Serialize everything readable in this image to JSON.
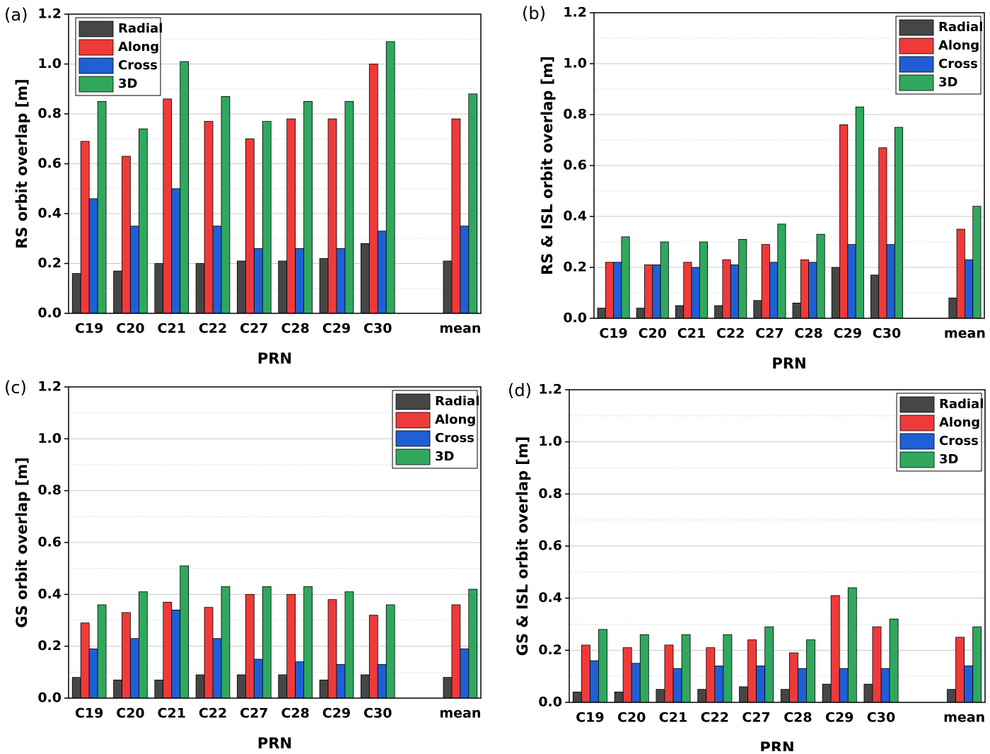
{
  "chart_data": [
    {
      "type": "bar",
      "label": "(a)",
      "xlabel": "PRN",
      "ylabel": "RS orbit overlap [m]",
      "categories": [
        "C19",
        "C20",
        "C21",
        "C22",
        "C27",
        "C28",
        "C29",
        "C30",
        null,
        "mean"
      ],
      "ylim": [
        0,
        1.2
      ],
      "yticks": [
        {
          "value": 0,
          "label": "0.0"
        },
        0.2,
        0.4,
        0.6,
        0.8,
        {
          "value": 1,
          "label": "1.0"
        },
        1.2
      ],
      "grid": true,
      "legend": "top-left",
      "series": [
        {
          "name": "Radial",
          "color": "#464646",
          "values": [
            0.16,
            0.17,
            0.2,
            0.2,
            0.21,
            0.21,
            0.22,
            0.28,
            null,
            0.21
          ]
        },
        {
          "name": "Along",
          "color": "#f03a3a",
          "values": [
            0.69,
            0.63,
            0.86,
            0.77,
            0.7,
            0.78,
            0.78,
            1.0,
            null,
            0.78
          ]
        },
        {
          "name": "Cross",
          "color": "#1f5fd6",
          "values": [
            0.46,
            0.35,
            0.5,
            0.35,
            0.26,
            0.26,
            0.26,
            0.33,
            null,
            0.35
          ]
        },
        {
          "name": "3D",
          "color": "#2fa85e",
          "values": [
            0.85,
            0.74,
            1.01,
            0.87,
            0.77,
            0.85,
            0.85,
            1.09,
            null,
            0.88
          ]
        }
      ]
    },
    {
      "type": "bar",
      "label": "(b)",
      "xlabel": "PRN",
      "ylabel": "RS & ISL orbit overlap [m]",
      "categories": [
        "C19",
        "C20",
        "C21",
        "C22",
        "C27",
        "C28",
        "C29",
        "C30",
        null,
        "mean"
      ],
      "ylim": [
        0,
        1.2
      ],
      "yticks": [
        {
          "value": 0,
          "label": "0.0"
        },
        0.2,
        0.4,
        0.6,
        0.8,
        {
          "value": 1,
          "label": "1.0"
        },
        1.2
      ],
      "grid": true,
      "legend": "top-right",
      "series": [
        {
          "name": "Radial",
          "color": "#464646",
          "values": [
            0.04,
            0.04,
            0.05,
            0.05,
            0.07,
            0.06,
            0.2,
            0.17,
            null,
            0.08
          ]
        },
        {
          "name": "Along",
          "color": "#f03a3a",
          "values": [
            0.22,
            0.21,
            0.22,
            0.23,
            0.29,
            0.23,
            0.76,
            0.67,
            null,
            0.35
          ]
        },
        {
          "name": "Cross",
          "color": "#1f5fd6",
          "values": [
            0.22,
            0.21,
            0.2,
            0.21,
            0.22,
            0.22,
            0.29,
            0.29,
            null,
            0.23
          ]
        },
        {
          "name": "3D",
          "color": "#2fa85e",
          "values": [
            0.32,
            0.3,
            0.3,
            0.31,
            0.37,
            0.33,
            0.83,
            0.75,
            null,
            0.44
          ]
        }
      ]
    },
    {
      "type": "bar",
      "label": "(c)",
      "xlabel": "PRN",
      "ylabel": "GS orbit overlap [m]",
      "categories": [
        "C19",
        "C20",
        "C21",
        "C22",
        "C27",
        "C28",
        "C29",
        "C30",
        null,
        "mean"
      ],
      "ylim": [
        0,
        1.2
      ],
      "yticks": [
        {
          "value": 0,
          "label": "0.0"
        },
        0.2,
        0.4,
        0.6,
        0.8,
        {
          "value": 1,
          "label": "1.0"
        },
        1.2
      ],
      "grid": true,
      "legend": "top-right",
      "series": [
        {
          "name": "Radial",
          "color": "#464646",
          "values": [
            0.08,
            0.07,
            0.07,
            0.09,
            0.09,
            0.09,
            0.07,
            0.09,
            null,
            0.08
          ]
        },
        {
          "name": "Along",
          "color": "#f03a3a",
          "values": [
            0.29,
            0.33,
            0.37,
            0.35,
            0.4,
            0.4,
            0.38,
            0.32,
            null,
            0.36
          ]
        },
        {
          "name": "Cross",
          "color": "#1f5fd6",
          "values": [
            0.19,
            0.23,
            0.34,
            0.23,
            0.15,
            0.14,
            0.13,
            0.13,
            null,
            0.19
          ]
        },
        {
          "name": "3D",
          "color": "#2fa85e",
          "values": [
            0.36,
            0.41,
            0.51,
            0.43,
            0.43,
            0.43,
            0.41,
            0.36,
            null,
            0.42
          ]
        }
      ]
    },
    {
      "type": "bar",
      "label": "(d)",
      "xlabel": "PRN",
      "ylabel": "GS & ISL orbit overlap [m]",
      "categories": [
        "C19",
        "C20",
        "C21",
        "C22",
        "C27",
        "C28",
        "C29",
        "C30",
        null,
        "mean"
      ],
      "ylim": [
        0,
        1.2
      ],
      "yticks": [
        {
          "value": 0,
          "label": "0.0"
        },
        0.2,
        0.4,
        0.6,
        0.8,
        {
          "value": 1,
          "label": "1.0"
        },
        1.2
      ],
      "grid": true,
      "legend": "top-right",
      "series": [
        {
          "name": "Radial",
          "color": "#464646",
          "values": [
            0.04,
            0.04,
            0.05,
            0.05,
            0.06,
            0.05,
            0.07,
            0.07,
            null,
            0.05
          ]
        },
        {
          "name": "Along",
          "color": "#f03a3a",
          "values": [
            0.22,
            0.21,
            0.22,
            0.21,
            0.24,
            0.19,
            0.41,
            0.29,
            null,
            0.25
          ]
        },
        {
          "name": "Cross",
          "color": "#1f5fd6",
          "values": [
            0.16,
            0.15,
            0.13,
            0.14,
            0.14,
            0.13,
            0.13,
            0.13,
            null,
            0.14
          ]
        },
        {
          "name": "3D",
          "color": "#2fa85e",
          "values": [
            0.28,
            0.26,
            0.26,
            0.26,
            0.29,
            0.24,
            0.44,
            0.32,
            null,
            0.29
          ]
        }
      ]
    }
  ]
}
